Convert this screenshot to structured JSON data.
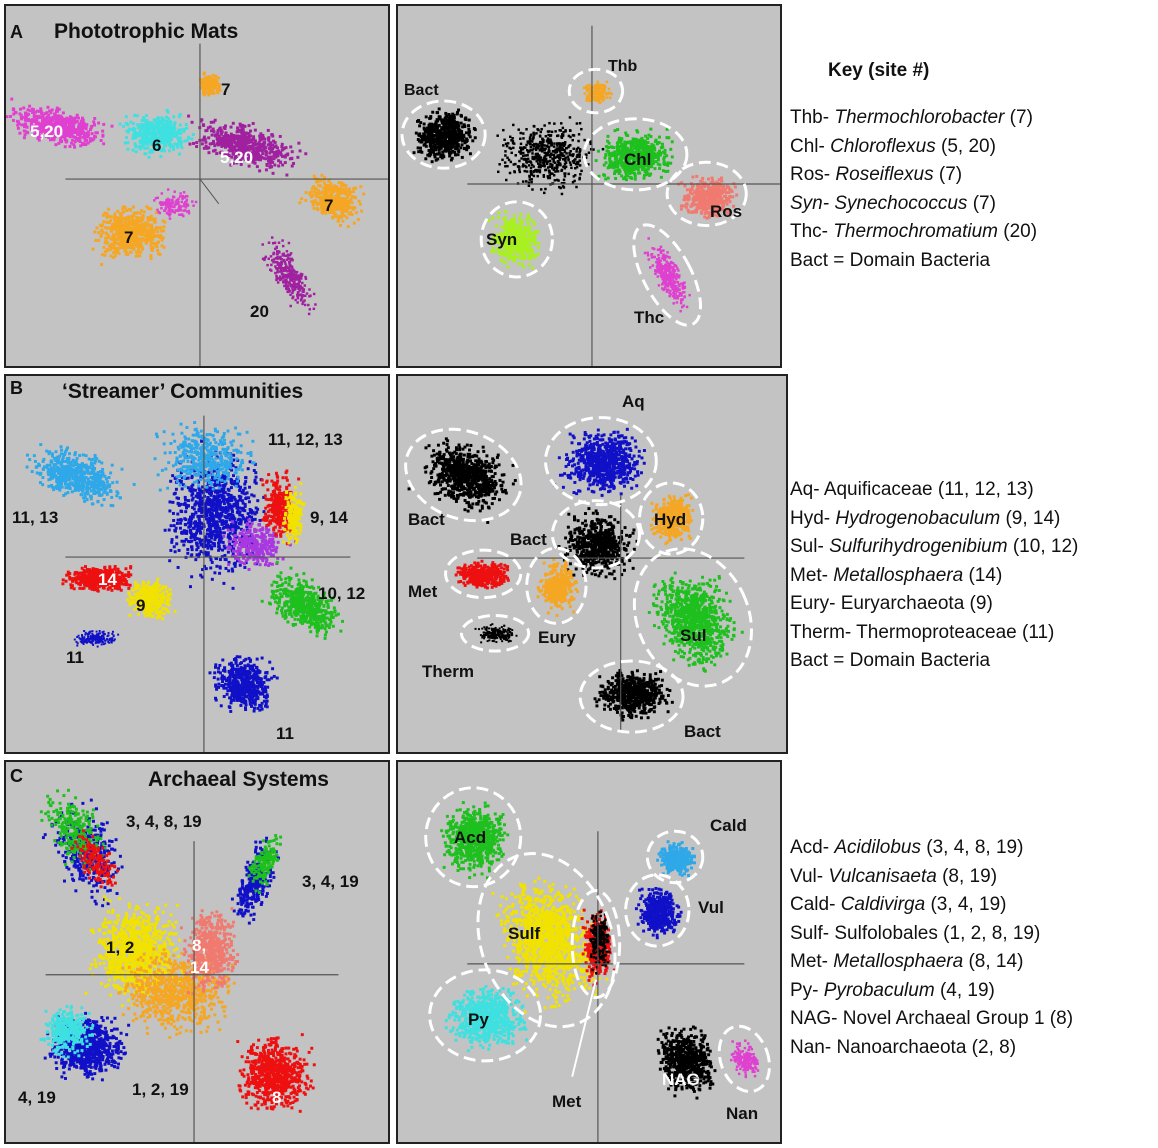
{
  "key_title": "Key (site #)",
  "panels": {
    "a": {
      "letter": "A",
      "title": "Phototrophic Mats",
      "left_labels": [
        "7",
        "5,20",
        "6",
        "5,20",
        "7",
        "7",
        "20"
      ],
      "right_labels": [
        "Thb",
        "Bact",
        "Chl",
        "Ros",
        "Syn",
        "Thc"
      ],
      "key": [
        {
          "abbr": "Thb- ",
          "name": "Thermochlorobacter",
          "italic": true,
          "sites": " (7)"
        },
        {
          "abbr": "Chl- ",
          "name": "Chloroflexus",
          "italic": true,
          "sites": " (5, 20)"
        },
        {
          "abbr": "Ros- ",
          "name": "Roseiflexus",
          "italic": true,
          "sites": " (7)"
        },
        {
          "abbr": "Syn- ",
          "name": "Synechococcus",
          "italic": true,
          "sites": " (7)",
          "abbr_italic": true
        },
        {
          "abbr": "Thc- ",
          "name": "Thermochromatium",
          "italic": true,
          "sites": " (20)"
        },
        {
          "abbr": "Bact = ",
          "name": "Domain Bacteria",
          "italic": false,
          "sites": ""
        }
      ]
    },
    "b": {
      "letter": "B",
      "title": "‘Streamer’ Communities",
      "left_labels": [
        "11, 12, 13",
        "11, 13",
        "9, 14",
        "14",
        "9",
        "10, 12",
        "11",
        "11"
      ],
      "right_labels": [
        "Aq",
        "Bact",
        "Hyd",
        "Bact",
        "Met",
        "Eury",
        "Sul",
        "Therm",
        "Bact"
      ],
      "key": [
        {
          "abbr": "Aq- ",
          "name": "Aquificaceae",
          "italic": false,
          "sites": " (11, 12, 13)"
        },
        {
          "abbr": "Hyd- ",
          "name": "Hydrogenobaculum",
          "italic": true,
          "sites": " (9, 14)"
        },
        {
          "abbr": "Sul- ",
          "name": "Sulfurihydrogenibium",
          "italic": true,
          "sites": " (10, 12)"
        },
        {
          "abbr": "Met- ",
          "name": "Metallosphaera",
          "italic": true,
          "sites": " (14)"
        },
        {
          "abbr": "Eury- ",
          "name": "Euryarchaeota",
          "italic": false,
          "sites": " (9)"
        },
        {
          "abbr": "Therm- ",
          "name": "Thermoproteaceae",
          "italic": false,
          "sites": " (11)"
        },
        {
          "abbr": "Bact = ",
          "name": "Domain Bacteria",
          "italic": false,
          "sites": ""
        }
      ]
    },
    "c": {
      "letter": "C",
      "title": "Archaeal Systems",
      "left_labels": [
        "3, 4, 8, 19",
        "3, 4, 19",
        "1, 2",
        "8,",
        "14",
        "4, 19",
        "1, 2, 19",
        "8"
      ],
      "right_labels": [
        "Acd",
        "Cald",
        "Vul",
        "Sulf",
        "Py",
        "NAG",
        "Met",
        "Nan"
      ],
      "key": [
        {
          "abbr": "Acd- ",
          "name": "Acidilobus",
          "italic": true,
          "sites": " (3, 4, 8, 19)"
        },
        {
          "abbr": "Vul- ",
          "name": "Vulcanisaeta",
          "italic": true,
          "sites": " (8, 19)"
        },
        {
          "abbr": "Cald- ",
          "name": "Caldivirga",
          "italic": true,
          "sites": " (3, 4, 19)"
        },
        {
          "abbr": "Sulf- ",
          "name": "Sulfolobales",
          "italic": false,
          "sites": " (1, 2, 8, 19)"
        },
        {
          "abbr": "Met- ",
          "name": "Metallosphaera",
          "italic": true,
          "sites": " (8, 14)"
        },
        {
          "abbr": "Py- ",
          "name": "Pyrobaculum",
          "italic": true,
          "sites": " (4, 19)"
        },
        {
          "abbr": "NAG- ",
          "name": "Novel Archaeal Group 1",
          "italic": false,
          "sites": " (8)"
        },
        {
          "abbr": "Nan- ",
          "name": "Nanoarchaeota",
          "italic": false,
          "sites": " (2, 8)"
        }
      ]
    }
  },
  "colors": {
    "panel_bg": "#c3c3c3",
    "magenta": "#e040d0",
    "purple": "#a020a0",
    "orange": "#f5a623",
    "cyan": "#3ee0e0",
    "lightblue": "#2ea8e8",
    "blue": "#1010c8",
    "red": "#ee1010",
    "yellow": "#f2e200",
    "green": "#1ec01e",
    "lime": "#a8f020",
    "salmon": "#f07a70",
    "black": "#000000",
    "violet": "#a838e0"
  }
}
